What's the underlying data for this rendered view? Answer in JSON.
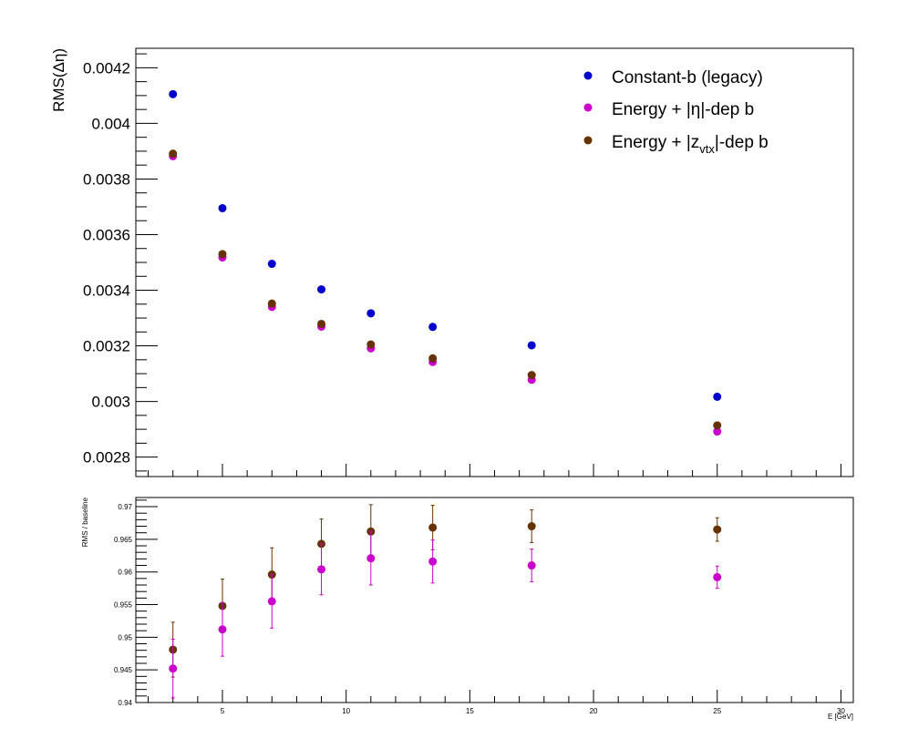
{
  "chart_data": [
    {
      "type": "scatter",
      "title": "",
      "xlabel": "",
      "ylabel": "RMS(Δη)",
      "xlim": [
        1.5,
        30.5
      ],
      "ylim": [
        0.00273,
        0.00427
      ],
      "yticks": [
        {
          "value": 0.0028,
          "label": "0.0028"
        },
        {
          "value": 0.003,
          "label": "0.003"
        },
        {
          "value": 0.0032,
          "label": "0.0032"
        },
        {
          "value": 0.0034,
          "label": "0.0034"
        },
        {
          "value": 0.0036,
          "label": "0.0036"
        },
        {
          "value": 0.0038,
          "label": "0.0038"
        },
        {
          "value": 0.004,
          "label": "0.004"
        },
        {
          "value": 0.0042,
          "label": "0.0042"
        }
      ],
      "legend_position": "top-right",
      "grid": false,
      "series": [
        {
          "name": "Constant-b (legacy)",
          "color": "#0000cc",
          "x": [
            3,
            5,
            7,
            9,
            11,
            13.5,
            17.5,
            25
          ],
          "y": [
            0.004105,
            0.003695,
            0.003495,
            0.003403,
            0.003317,
            0.003268,
            0.003202,
            0.003017
          ]
        },
        {
          "name": "Energy + |η|-dep b",
          "color": "#cc00cc",
          "x": [
            3,
            5,
            7,
            9,
            11,
            13.5,
            17.5,
            25
          ],
          "y": [
            0.003882,
            0.003518,
            0.00334,
            0.003269,
            0.003191,
            0.003142,
            0.003078,
            0.002892
          ]
        },
        {
          "name_parts": {
            "main": "Energy + |z",
            "sub": "vtx",
            "tail": "|-dep b"
          },
          "color": "#663300",
          "x": [
            3,
            5,
            7,
            9,
            11,
            13.5,
            17.5,
            25
          ],
          "y": [
            0.003891,
            0.00353,
            0.003352,
            0.003279,
            0.003205,
            0.003155,
            0.003095,
            0.002914
          ]
        }
      ]
    },
    {
      "type": "scatter",
      "title": "",
      "xlabel": "E  [GeV]",
      "ylabel": "RMS / baseline",
      "xlim": [
        1.5,
        30.5
      ],
      "ylim": [
        0.94,
        0.9714
      ],
      "xticks": [
        {
          "value": 5,
          "label": "5"
        },
        {
          "value": 10,
          "label": "10"
        },
        {
          "value": 15,
          "label": "15"
        },
        {
          "value": 20,
          "label": "20"
        },
        {
          "value": 25,
          "label": "25"
        },
        {
          "value": 30,
          "label": "30"
        }
      ],
      "yticks": [
        {
          "value": 0.94,
          "label": "0.94"
        },
        {
          "value": 0.945,
          "label": "0.945"
        },
        {
          "value": 0.95,
          "label": "0.95"
        },
        {
          "value": 0.955,
          "label": "0.955"
        },
        {
          "value": 0.96,
          "label": "0.96"
        },
        {
          "value": 0.965,
          "label": "0.965"
        },
        {
          "value": 0.97,
          "label": "0.97"
        }
      ],
      "grid": false,
      "series": [
        {
          "color": "#663300",
          "x": [
            3,
            5,
            7,
            9,
            11,
            13.5,
            17.5,
            25
          ],
          "y": [
            0.9481,
            0.9548,
            0.9596,
            0.9643,
            0.9662,
            0.9668,
            0.967,
            0.9665
          ],
          "err": [
            0.0042,
            0.0041,
            0.0041,
            0.0038,
            0.0041,
            0.0034,
            0.0025,
            0.0018
          ]
        },
        {
          "color": "#cc00cc",
          "x": [
            3,
            5,
            7,
            9,
            11,
            13.5,
            17.5,
            25
          ],
          "y": [
            0.9452,
            0.9512,
            0.9555,
            0.9604,
            0.9621,
            0.9616,
            0.961,
            0.9592
          ],
          "err": [
            0.0045,
            0.0041,
            0.0041,
            0.0039,
            0.0041,
            0.0033,
            0.0025,
            0.0017
          ]
        }
      ]
    }
  ]
}
